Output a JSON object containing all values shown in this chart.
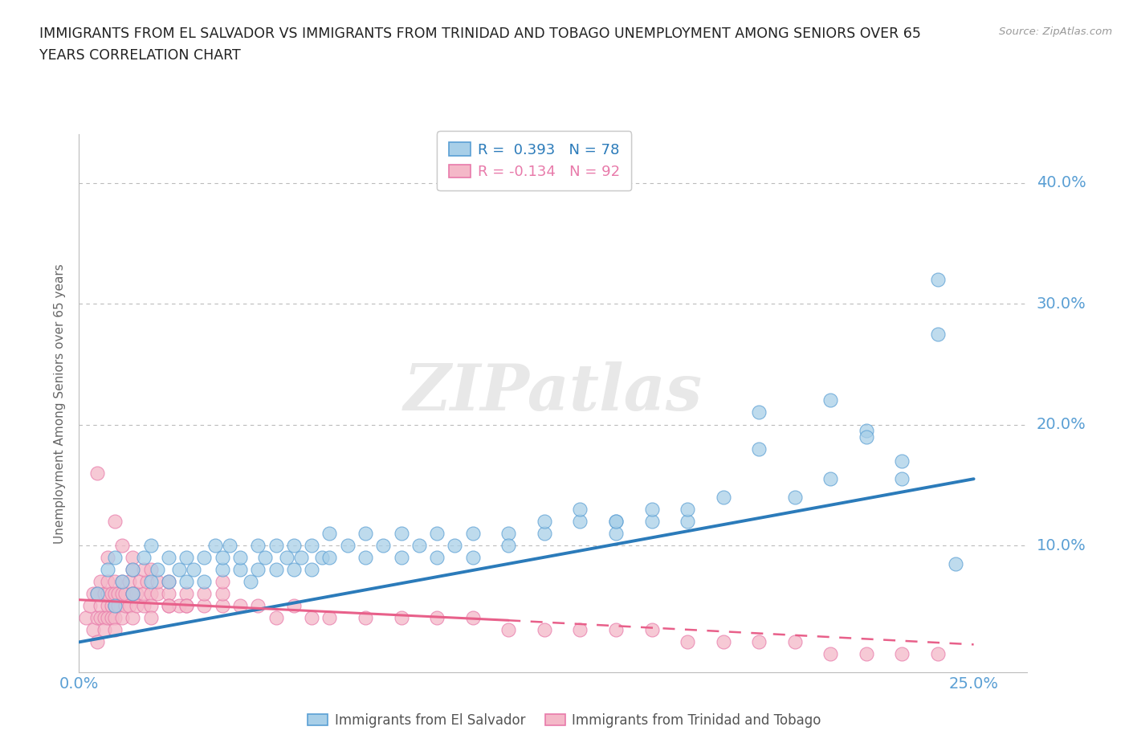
{
  "title_line1": "IMMIGRANTS FROM EL SALVADOR VS IMMIGRANTS FROM TRINIDAD AND TOBAGO UNEMPLOYMENT AMONG SENIORS OVER 65",
  "title_line2": "YEARS CORRELATION CHART",
  "source": "Source: ZipAtlas.com",
  "ylabel": "Unemployment Among Seniors over 65 years",
  "xlim": [
    0.0,
    0.265
  ],
  "ylim": [
    -0.005,
    0.44
  ],
  "xticks": [
    0.0,
    0.05,
    0.1,
    0.15,
    0.2,
    0.25
  ],
  "xtick_labels": [
    "0.0%",
    "",
    "",
    "",
    "",
    "25.0%"
  ],
  "ytick_labels": [
    "10.0%",
    "20.0%",
    "30.0%",
    "40.0%"
  ],
  "ytick_values": [
    0.1,
    0.2,
    0.3,
    0.4
  ],
  "blue_color": "#a8cfe8",
  "pink_color": "#f4b8c8",
  "blue_edge_color": "#5a9fd4",
  "pink_edge_color": "#e87aaa",
  "blue_line_color": "#2b7bba",
  "pink_line_color": "#e8608a",
  "blue_R": 0.393,
  "blue_N": 78,
  "pink_R": -0.134,
  "pink_N": 92,
  "legend_label_blue": "Immigrants from El Salvador",
  "legend_label_pink": "Immigrants from Trinidad and Tobago",
  "watermark": "ZIPatlas",
  "background_color": "#ffffff",
  "grid_color": "#bbbbbb",
  "title_color": "#222222",
  "axis_label_color": "#666666",
  "tick_label_color": "#5a9fd4",
  "blue_trend_x0": 0.0,
  "blue_trend_y0": 0.02,
  "blue_trend_x1": 0.25,
  "blue_trend_y1": 0.155,
  "pink_trend_x0": 0.0,
  "pink_trend_y0": 0.055,
  "pink_trend_x1": 0.22,
  "pink_trend_y1": 0.025,
  "blue_scatter_x": [
    0.005,
    0.008,
    0.01,
    0.01,
    0.012,
    0.015,
    0.015,
    0.018,
    0.02,
    0.02,
    0.022,
    0.025,
    0.025,
    0.028,
    0.03,
    0.03,
    0.032,
    0.035,
    0.035,
    0.038,
    0.04,
    0.04,
    0.042,
    0.045,
    0.045,
    0.048,
    0.05,
    0.05,
    0.052,
    0.055,
    0.055,
    0.058,
    0.06,
    0.06,
    0.062,
    0.065,
    0.065,
    0.068,
    0.07,
    0.07,
    0.075,
    0.08,
    0.08,
    0.085,
    0.09,
    0.09,
    0.095,
    0.1,
    0.1,
    0.105,
    0.11,
    0.11,
    0.12,
    0.12,
    0.13,
    0.13,
    0.14,
    0.14,
    0.15,
    0.15,
    0.16,
    0.16,
    0.17,
    0.17,
    0.18,
    0.19,
    0.2,
    0.21,
    0.21,
    0.22,
    0.23,
    0.23,
    0.24,
    0.24,
    0.15,
    0.19,
    0.22,
    0.245
  ],
  "blue_scatter_y": [
    0.06,
    0.08,
    0.05,
    0.09,
    0.07,
    0.08,
    0.06,
    0.09,
    0.07,
    0.1,
    0.08,
    0.09,
    0.07,
    0.08,
    0.07,
    0.09,
    0.08,
    0.09,
    0.07,
    0.1,
    0.08,
    0.09,
    0.1,
    0.08,
    0.09,
    0.07,
    0.08,
    0.1,
    0.09,
    0.08,
    0.1,
    0.09,
    0.08,
    0.1,
    0.09,
    0.1,
    0.08,
    0.09,
    0.09,
    0.11,
    0.1,
    0.09,
    0.11,
    0.1,
    0.09,
    0.11,
    0.1,
    0.09,
    0.11,
    0.1,
    0.11,
    0.09,
    0.11,
    0.1,
    0.11,
    0.12,
    0.12,
    0.13,
    0.12,
    0.11,
    0.12,
    0.13,
    0.12,
    0.13,
    0.14,
    0.18,
    0.14,
    0.22,
    0.155,
    0.195,
    0.17,
    0.155,
    0.32,
    0.275,
    0.12,
    0.21,
    0.19,
    0.085
  ],
  "pink_scatter_x": [
    0.002,
    0.003,
    0.004,
    0.004,
    0.005,
    0.005,
    0.005,
    0.006,
    0.006,
    0.006,
    0.007,
    0.007,
    0.007,
    0.008,
    0.008,
    0.008,
    0.008,
    0.009,
    0.009,
    0.009,
    0.01,
    0.01,
    0.01,
    0.01,
    0.01,
    0.011,
    0.011,
    0.012,
    0.012,
    0.012,
    0.013,
    0.013,
    0.014,
    0.014,
    0.015,
    0.015,
    0.015,
    0.016,
    0.016,
    0.017,
    0.018,
    0.018,
    0.019,
    0.02,
    0.02,
    0.02,
    0.022,
    0.022,
    0.025,
    0.025,
    0.025,
    0.028,
    0.03,
    0.03,
    0.035,
    0.035,
    0.04,
    0.04,
    0.045,
    0.05,
    0.055,
    0.06,
    0.065,
    0.07,
    0.08,
    0.09,
    0.1,
    0.11,
    0.12,
    0.13,
    0.14,
    0.15,
    0.16,
    0.17,
    0.18,
    0.19,
    0.2,
    0.21,
    0.22,
    0.23,
    0.24,
    0.005,
    0.008,
    0.01,
    0.012,
    0.015,
    0.015,
    0.018,
    0.02,
    0.025,
    0.03,
    0.04
  ],
  "pink_scatter_y": [
    0.04,
    0.05,
    0.03,
    0.06,
    0.04,
    0.06,
    0.02,
    0.05,
    0.04,
    0.07,
    0.04,
    0.06,
    0.03,
    0.05,
    0.06,
    0.04,
    0.07,
    0.05,
    0.06,
    0.04,
    0.05,
    0.07,
    0.04,
    0.06,
    0.03,
    0.06,
    0.05,
    0.06,
    0.04,
    0.07,
    0.05,
    0.06,
    0.05,
    0.07,
    0.06,
    0.04,
    0.08,
    0.06,
    0.05,
    0.07,
    0.05,
    0.06,
    0.07,
    0.06,
    0.05,
    0.04,
    0.06,
    0.07,
    0.06,
    0.05,
    0.07,
    0.05,
    0.06,
    0.05,
    0.05,
    0.06,
    0.05,
    0.06,
    0.05,
    0.05,
    0.04,
    0.05,
    0.04,
    0.04,
    0.04,
    0.04,
    0.04,
    0.04,
    0.03,
    0.03,
    0.03,
    0.03,
    0.03,
    0.02,
    0.02,
    0.02,
    0.02,
    0.01,
    0.01,
    0.01,
    0.01,
    0.16,
    0.09,
    0.12,
    0.1,
    0.09,
    0.06,
    0.08,
    0.08,
    0.05,
    0.05,
    0.07
  ]
}
